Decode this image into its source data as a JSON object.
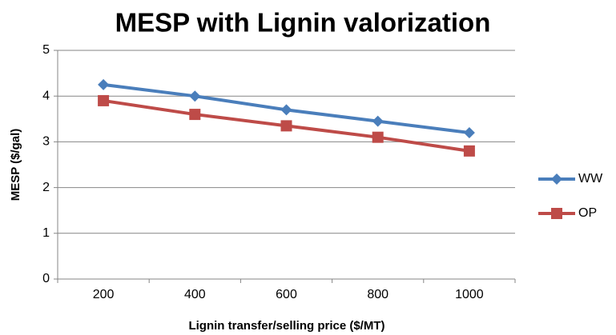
{
  "chart_data": {
    "type": "line",
    "title": "MESP with Lignin valorization",
    "x_label": "Lignin transfer/selling price ($/MT)",
    "y_label": "MESP ($/gal)",
    "categories": [
      200,
      400,
      600,
      800,
      1000
    ],
    "series": [
      {
        "name": "WW",
        "color": "#4a7ebb",
        "marker": "diamond",
        "values": [
          4.25,
          4.0,
          3.7,
          3.45,
          3.2
        ]
      },
      {
        "name": "OP",
        "color": "#be4b48",
        "marker": "square",
        "values": [
          3.9,
          3.6,
          3.35,
          3.1,
          2.8
        ]
      }
    ],
    "ylim": [
      0,
      5
    ],
    "yticks": [
      0,
      1,
      2,
      3,
      4,
      5
    ],
    "grid": true,
    "legend": "right"
  }
}
